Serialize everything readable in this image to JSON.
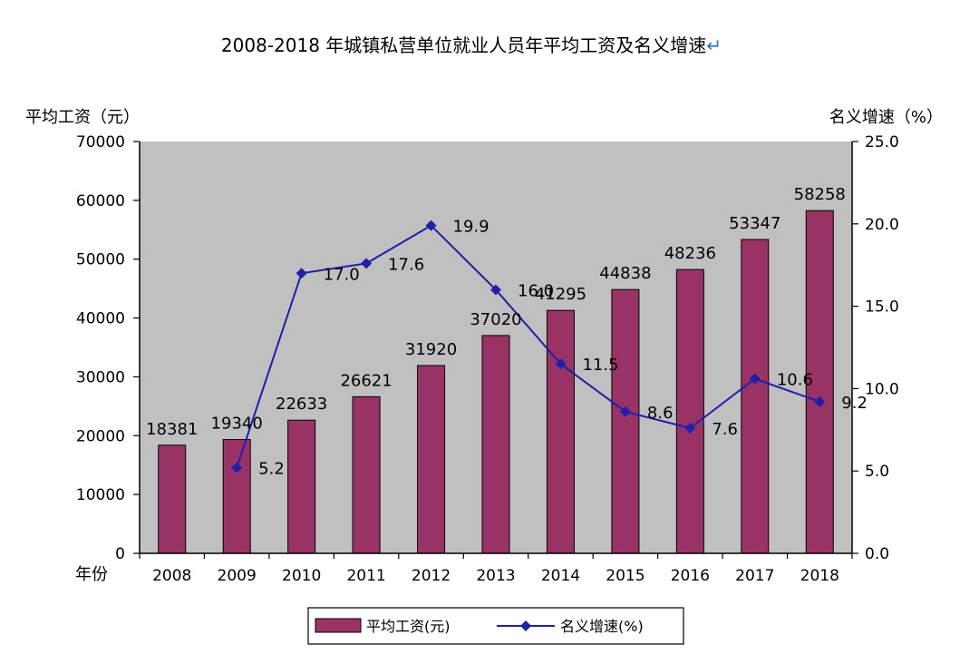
{
  "chart_data": {
    "type": "bar+line",
    "title": "2008-2018 年城镇私营单位就业人员年平均工资及名义增速",
    "title_mark": "↵",
    "ylabel_left": "平均工资（元）",
    "ylabel_right": "名义增速（%）",
    "xlabel": "年份",
    "categories": [
      "2008",
      "2009",
      "2010",
      "2011",
      "2012",
      "2013",
      "2014",
      "2015",
      "2016",
      "2017",
      "2018"
    ],
    "ylim_left": [
      0,
      70000
    ],
    "yticks_left": [
      "0",
      "10000",
      "20000",
      "30000",
      "40000",
      "50000",
      "60000",
      "70000"
    ],
    "ylim_right": [
      0,
      25
    ],
    "yticks_right": [
      "0.0",
      "5.0",
      "10.0",
      "15.0",
      "20.0",
      "25.0"
    ],
    "grid": false,
    "legend_position": "bottom",
    "series": [
      {
        "name": "平均工资(元)",
        "type": "bar",
        "axis": "left",
        "color": "#993366",
        "values": [
          18381,
          19340,
          22633,
          26621,
          31920,
          37020,
          41295,
          44838,
          48236,
          53347,
          58258
        ],
        "labels": [
          "18381",
          "19340",
          "22633",
          "26621",
          "31920",
          "37020",
          "41295",
          "44838",
          "48236",
          "53347",
          "58258"
        ]
      },
      {
        "name": "名义增速(%)",
        "type": "line",
        "axis": "right",
        "color": "#1f1fa8",
        "values": [
          null,
          5.2,
          17.0,
          17.6,
          19.9,
          16.0,
          11.5,
          8.6,
          7.6,
          10.6,
          9.2
        ],
        "labels": [
          "",
          "5.2",
          "17.0",
          "17.6",
          "19.9",
          "16.0",
          "11.5",
          "8.6",
          "7.6",
          "10.6",
          "9.2"
        ]
      }
    ],
    "plot_background": "#c0c0c0"
  }
}
